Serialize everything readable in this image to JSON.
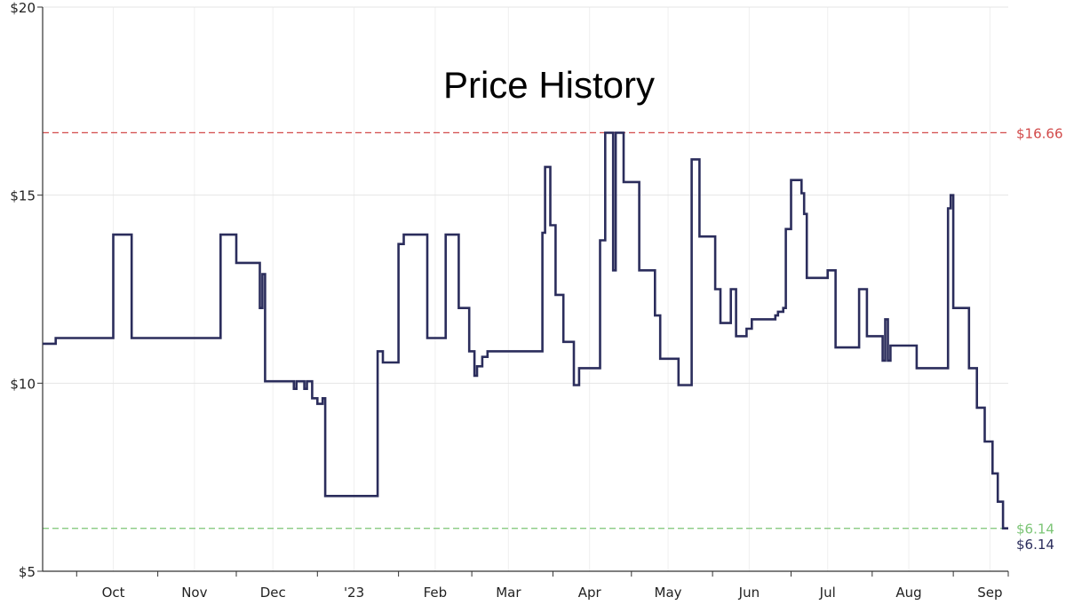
{
  "chart_data": {
    "type": "line",
    "title": "Price History",
    "xlabel": "",
    "ylabel": "",
    "x_ticks": [
      "Oct",
      "Nov",
      "Dec",
      "'23",
      "Feb",
      "Mar",
      "Apr",
      "May",
      "Jun",
      "Jul",
      "Aug",
      "Sep"
    ],
    "y_ticks": [
      "$5",
      "$10",
      "$15",
      "$20"
    ],
    "ylim": [
      5,
      20
    ],
    "xlim": [
      "2022-09-18",
      "2023-09-22"
    ],
    "grid": true,
    "step": true,
    "reference_lines": [
      {
        "label": "$16.66",
        "value": 16.66,
        "color": "#d24a4a"
      },
      {
        "label": "$6.14",
        "value": 6.14,
        "color": "#7cc576"
      }
    ],
    "current_label": "$6.14",
    "colors": {
      "line": "#2b2d5c",
      "grid": "#e5e5e5",
      "axis": "#333333"
    },
    "series": [
      {
        "points": [
          [
            "2022-09-18",
            11.05
          ],
          [
            "2022-09-23",
            11.2
          ],
          [
            "2022-10-15",
            13.95
          ],
          [
            "2022-10-22",
            11.2
          ],
          [
            "2022-11-25",
            13.95
          ],
          [
            "2022-12-01",
            13.2
          ],
          [
            "2022-12-10",
            12.0
          ],
          [
            "2022-12-11",
            12.9
          ],
          [
            "2022-12-12",
            10.05
          ],
          [
            "2022-12-23",
            9.85
          ],
          [
            "2022-12-24",
            10.05
          ],
          [
            "2022-12-27",
            9.85
          ],
          [
            "2022-12-28",
            10.05
          ],
          [
            "2022-12-30",
            9.6
          ],
          [
            "2023-01-01",
            9.45
          ],
          [
            "2023-01-03",
            9.6
          ],
          [
            "2023-01-04",
            7.0
          ],
          [
            "2023-01-24",
            10.85
          ],
          [
            "2023-01-26",
            10.55
          ],
          [
            "2023-02-01",
            13.7
          ],
          [
            "2023-02-03",
            13.95
          ],
          [
            "2023-02-12",
            11.2
          ],
          [
            "2023-02-19",
            13.95
          ],
          [
            "2023-02-24",
            12.0
          ],
          [
            "2023-02-28",
            10.85
          ],
          [
            "2023-03-02",
            10.2
          ],
          [
            "2023-03-03",
            10.45
          ],
          [
            "2023-03-05",
            10.7
          ],
          [
            "2023-03-07",
            10.85
          ],
          [
            "2023-03-28",
            14.0
          ],
          [
            "2023-03-29",
            15.75
          ],
          [
            "2023-03-31",
            14.2
          ],
          [
            "2023-04-02",
            12.35
          ],
          [
            "2023-04-05",
            11.1
          ],
          [
            "2023-04-09",
            9.95
          ],
          [
            "2023-04-11",
            10.4
          ],
          [
            "2023-04-19",
            13.8
          ],
          [
            "2023-04-21",
            16.66
          ],
          [
            "2023-04-24",
            13.0
          ],
          [
            "2023-04-25",
            16.66
          ],
          [
            "2023-04-28",
            15.35
          ],
          [
            "2023-05-04",
            13.0
          ],
          [
            "2023-05-10",
            11.8
          ],
          [
            "2023-05-12",
            10.65
          ],
          [
            "2023-05-19",
            9.95
          ],
          [
            "2023-05-24",
            15.95
          ],
          [
            "2023-05-27",
            13.9
          ],
          [
            "2023-06-02",
            12.5
          ],
          [
            "2023-06-04",
            11.6
          ],
          [
            "2023-06-08",
            12.5
          ],
          [
            "2023-06-10",
            11.25
          ],
          [
            "2023-06-14",
            11.45
          ],
          [
            "2023-06-16",
            11.7
          ],
          [
            "2023-06-25",
            11.8
          ],
          [
            "2023-06-26",
            11.9
          ],
          [
            "2023-06-28",
            12.0
          ],
          [
            "2023-06-29",
            14.1
          ],
          [
            "2023-07-01",
            15.4
          ],
          [
            "2023-07-05",
            15.05
          ],
          [
            "2023-07-06",
            14.5
          ],
          [
            "2023-07-07",
            12.8
          ],
          [
            "2023-07-15",
            13.0
          ],
          [
            "2023-07-18",
            10.95
          ],
          [
            "2023-07-27",
            12.5
          ],
          [
            "2023-07-30",
            11.25
          ],
          [
            "2023-08-05",
            10.6
          ],
          [
            "2023-08-06",
            11.7
          ],
          [
            "2023-08-07",
            10.6
          ],
          [
            "2023-08-08",
            11.0
          ],
          [
            "2023-08-18",
            10.4
          ],
          [
            "2023-08-30",
            14.65
          ],
          [
            "2023-08-31",
            15.0
          ],
          [
            "2023-09-01",
            12.0
          ],
          [
            "2023-09-07",
            10.4
          ],
          [
            "2023-09-10",
            9.35
          ],
          [
            "2023-09-13",
            8.45
          ],
          [
            "2023-09-16",
            7.6
          ],
          [
            "2023-09-18",
            6.85
          ],
          [
            "2023-09-20",
            6.14
          ],
          [
            "2023-09-22",
            6.14
          ]
        ]
      }
    ]
  }
}
